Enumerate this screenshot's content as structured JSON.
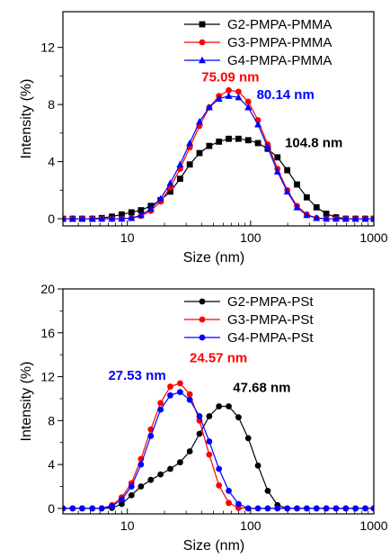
{
  "chart_data": [
    {
      "type": "line",
      "xscale": "log",
      "xlim": [
        3,
        1000
      ],
      "ylim": [
        -0.5,
        14.5
      ],
      "xticks": [
        10,
        100,
        1000
      ],
      "xtick_labels": [
        "10",
        "100",
        "1000"
      ],
      "yticks": [
        0,
        4,
        8,
        12
      ],
      "ytick_labels": [
        "0",
        "4",
        "8",
        "12"
      ],
      "xlabel": "Size (nm)",
      "ylabel": "Intensity (%)",
      "legend_position": "top-right",
      "series": [
        {
          "name": "G2-PMPA-PMMA",
          "color": "#000000",
          "marker": "square",
          "x": [
            3.0,
            3.6,
            4.3,
            5.2,
            6.2,
            7.5,
            9.0,
            10.8,
            12.9,
            15.5,
            18.6,
            22.3,
            26.8,
            32.1,
            38.5,
            46.2,
            55.4,
            66.5,
            79.8,
            95.7,
            114.8,
            137.8,
            165.3,
            198.4,
            238.1,
            285.7,
            342.8,
            411.4,
            493.7,
            592.4,
            710.9,
            853.1,
            1000
          ],
          "y": [
            0,
            0,
            0,
            0,
            0.05,
            0.15,
            0.3,
            0.45,
            0.6,
            0.9,
            1.3,
            1.9,
            2.8,
            3.8,
            4.6,
            5.1,
            5.4,
            5.6,
            5.6,
            5.5,
            5.3,
            4.9,
            4.3,
            3.4,
            2.4,
            1.5,
            0.8,
            0.35,
            0.1,
            0,
            0,
            0,
            0
          ]
        },
        {
          "name": "G3-PMPA-PMMA",
          "color": "#ff0000",
          "marker": "circle",
          "x": [
            3.0,
            3.6,
            4.3,
            5.2,
            6.2,
            7.5,
            9.0,
            10.8,
            12.9,
            15.5,
            18.6,
            22.3,
            26.8,
            32.1,
            38.5,
            46.2,
            55.4,
            66.5,
            79.8,
            95.7,
            114.8,
            137.8,
            165.3,
            198.4,
            238.1,
            285.7,
            342.8,
            411.4,
            493.7,
            592.4,
            710.9,
            853.1,
            1000
          ],
          "y": [
            0,
            0,
            0,
            0,
            0,
            0,
            0,
            0.05,
            0.2,
            0.55,
            1.2,
            2.2,
            3.5,
            5.0,
            6.5,
            7.8,
            8.6,
            9.0,
            8.9,
            8.2,
            6.9,
            5.2,
            3.5,
            2.0,
            0.9,
            0.3,
            0.05,
            0,
            0,
            0,
            0,
            0,
            0
          ]
        },
        {
          "name": "G4-PMPA-PMMA",
          "color": "#0000ff",
          "marker": "triangle",
          "x": [
            3.0,
            3.6,
            4.3,
            5.2,
            6.2,
            7.5,
            9.0,
            10.8,
            12.9,
            15.5,
            18.6,
            22.3,
            26.8,
            32.1,
            38.5,
            46.2,
            55.4,
            66.5,
            79.8,
            95.7,
            114.8,
            137.8,
            165.3,
            198.4,
            238.1,
            285.7,
            342.8,
            411.4,
            493.7,
            592.4,
            710.9,
            853.1,
            1000
          ],
          "y": [
            0,
            0,
            0,
            0,
            0,
            0,
            0,
            0.05,
            0.25,
            0.7,
            1.4,
            2.5,
            3.8,
            5.3,
            6.8,
            7.8,
            8.4,
            8.6,
            8.5,
            7.8,
            6.6,
            5.0,
            3.3,
            1.9,
            0.8,
            0.25,
            0.05,
            0,
            0,
            0,
            0,
            0,
            0
          ]
        }
      ],
      "annotations": [
        {
          "text": "75.09 nm",
          "color": "#ff0000",
          "x": 40,
          "y": 9.6
        },
        {
          "text": "80.14 nm",
          "color": "#0000ff",
          "x": 112,
          "y": 8.4
        },
        {
          "text": "104.8 nm",
          "color": "#000000",
          "x": 190,
          "y": 5.0
        }
      ]
    },
    {
      "type": "line",
      "xscale": "log",
      "xlim": [
        3,
        1000
      ],
      "ylim": [
        -0.5,
        20
      ],
      "xticks": [
        10,
        100,
        1000
      ],
      "xtick_labels": [
        "10",
        "100",
        "1000"
      ],
      "yticks": [
        0,
        4,
        8,
        12,
        16,
        20
      ],
      "ytick_labels": [
        "0",
        "4",
        "8",
        "12",
        "16",
        "20"
      ],
      "xlabel": "Size (nm)",
      "ylabel": "Intensity (%)",
      "legend_position": "top-right",
      "series": [
        {
          "name": "G2-PMPA-PSt",
          "color": "#000000",
          "marker": "circle",
          "x": [
            3.0,
            3.6,
            4.3,
            5.2,
            6.2,
            7.5,
            9.0,
            10.8,
            12.9,
            15.5,
            18.6,
            22.3,
            26.8,
            32.1,
            38.5,
            46.2,
            55.4,
            66.5,
            79.8,
            95.7,
            114.8,
            137.8,
            165.3,
            198.4,
            238.1,
            285.7,
            342.8,
            411.4,
            493.7,
            592.4,
            710.9,
            853.1,
            1000
          ],
          "y": [
            0,
            0,
            0,
            0,
            0,
            0.05,
            0.4,
            1.2,
            2.0,
            2.6,
            3.1,
            3.6,
            4.2,
            5.2,
            6.8,
            8.4,
            9.3,
            9.3,
            8.3,
            6.4,
            3.9,
            1.6,
            0.3,
            0,
            0,
            0,
            0,
            0,
            0,
            0,
            0,
            0,
            0
          ]
        },
        {
          "name": "G3-PMPA-PSt",
          "color": "#ff0000",
          "marker": "circle",
          "x": [
            3.0,
            3.6,
            4.3,
            5.2,
            6.2,
            7.5,
            9.0,
            10.8,
            12.9,
            15.5,
            18.6,
            22.3,
            26.8,
            32.1,
            38.5,
            46.2,
            55.4,
            66.5,
            79.8,
            95.7,
            114.8,
            137.8,
            165.3,
            198.4,
            238.1,
            285.7,
            342.8,
            411.4,
            493.7,
            592.4,
            710.9,
            853.1,
            1000
          ],
          "y": [
            0,
            0,
            0,
            0,
            0,
            0.3,
            1.0,
            2.3,
            4.5,
            7.2,
            9.6,
            11.1,
            11.4,
            10.4,
            8.0,
            4.9,
            2.1,
            0.5,
            0.05,
            0,
            0,
            0,
            0,
            0,
            0,
            0,
            0,
            0,
            0,
            0,
            0,
            0,
            0
          ]
        },
        {
          "name": "G4-PMPA-PSt",
          "color": "#0000ff",
          "marker": "circle",
          "x": [
            3.0,
            3.6,
            4.3,
            5.2,
            6.2,
            7.5,
            9.0,
            10.8,
            12.9,
            15.5,
            18.6,
            22.3,
            26.8,
            32.1,
            38.5,
            46.2,
            55.4,
            66.5,
            79.8,
            95.7,
            114.8,
            137.8,
            165.3,
            198.4,
            238.1,
            285.7,
            342.8,
            411.4,
            493.7,
            592.4,
            710.9,
            853.1,
            1000
          ],
          "y": [
            0,
            0,
            0,
            0,
            0,
            0.2,
            0.8,
            2.0,
            4.0,
            6.6,
            9.0,
            10.3,
            10.6,
            9.9,
            8.4,
            6.1,
            3.6,
            1.6,
            0.4,
            0,
            0,
            0,
            0,
            0,
            0,
            0,
            0,
            0,
            0,
            0,
            0,
            0,
            0
          ]
        }
      ],
      "annotations": [
        {
          "text": "27.53 nm",
          "color": "#0000ff",
          "x": 7.0,
          "y": 11.7
        },
        {
          "text": "24.57 nm",
          "color": "#ff0000",
          "x": 32,
          "y": 13.3
        },
        {
          "text": "47.68 nm",
          "color": "#000000",
          "x": 72,
          "y": 10.6
        }
      ]
    }
  ]
}
